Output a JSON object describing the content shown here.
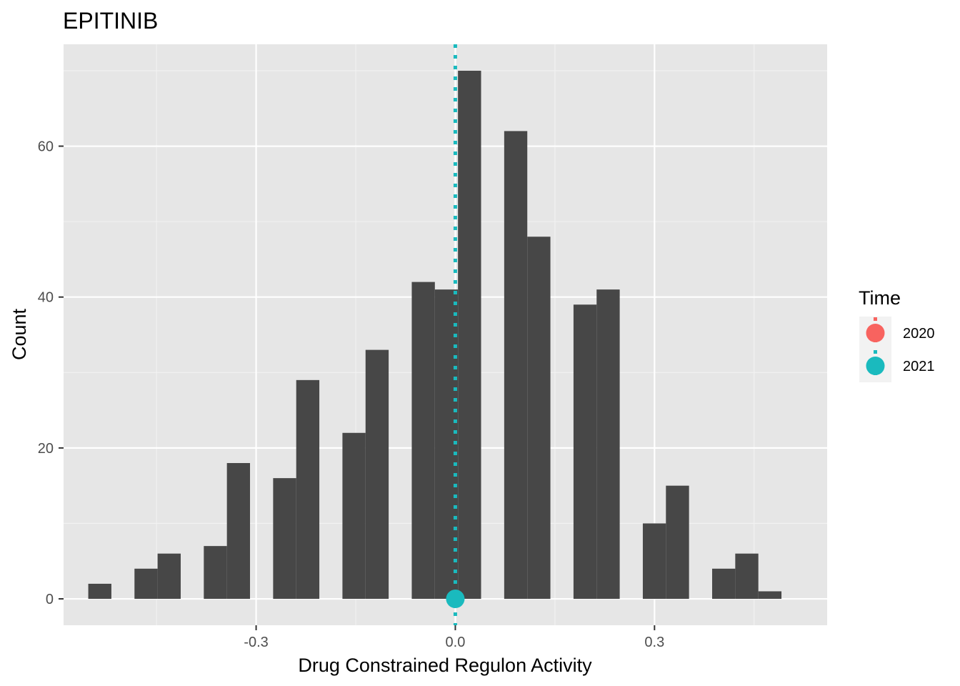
{
  "chart_data": {
    "type": "bar",
    "title": "EPITINIB",
    "xlabel": "Drug Constrained Regulon Activity",
    "ylabel": "Count",
    "xlim": [
      -0.59,
      0.56
    ],
    "ylim": [
      -3.5,
      73.5
    ],
    "x_ticks": [
      -0.3,
      0.0,
      0.3
    ],
    "x_tick_labels": [
      "-0.3",
      "0.0",
      "0.3"
    ],
    "y_ticks": [
      0,
      20,
      40,
      60
    ],
    "y_tick_labels": [
      "0",
      "20",
      "40",
      "60"
    ],
    "bin_width": 0.0348,
    "bins": [
      {
        "x": -0.5354,
        "count": 2
      },
      {
        "x": -0.4658,
        "count": 4
      },
      {
        "x": -0.431,
        "count": 6
      },
      {
        "x": -0.3614,
        "count": 7
      },
      {
        "x": -0.3266,
        "count": 18
      },
      {
        "x": -0.257,
        "count": 16
      },
      {
        "x": -0.2222,
        "count": 29
      },
      {
        "x": -0.1526,
        "count": 22
      },
      {
        "x": -0.1178,
        "count": 33
      },
      {
        "x": -0.0482,
        "count": 42
      },
      {
        "x": -0.0134,
        "count": 41
      },
      {
        "x": 0.0214,
        "count": 70
      },
      {
        "x": 0.091,
        "count": 62
      },
      {
        "x": 0.1258,
        "count": 48
      },
      {
        "x": 0.1954,
        "count": 39
      },
      {
        "x": 0.2302,
        "count": 41
      },
      {
        "x": 0.2998,
        "count": 10
      },
      {
        "x": 0.3346,
        "count": 15
      },
      {
        "x": 0.4042,
        "count": 4
      },
      {
        "x": 0.439,
        "count": 6
      },
      {
        "x": 0.4738,
        "count": 1
      }
    ],
    "bar_color": "#474747",
    "grid": true,
    "reference": {
      "x": 0.0,
      "point_y": 0,
      "series": "2021",
      "line_style": "dotted",
      "color": "#1ABABE"
    },
    "legend": {
      "title": "Time",
      "position": "right",
      "entries": [
        {
          "label": "2020",
          "color": "#F8635F"
        },
        {
          "label": "2021",
          "color": "#1ABABE"
        }
      ]
    }
  }
}
